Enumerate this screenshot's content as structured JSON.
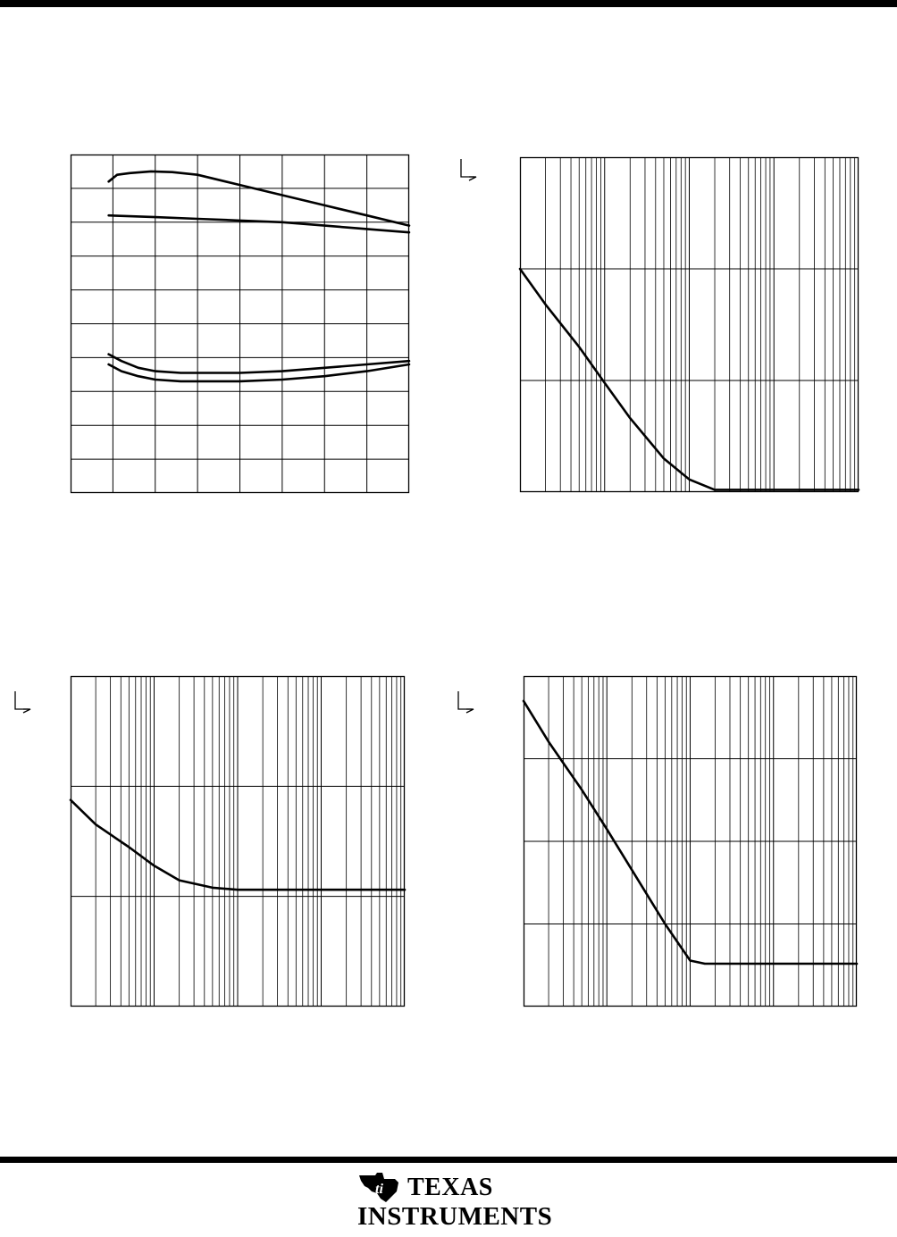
{
  "chart_data": [
    {
      "type": "line",
      "title": "",
      "xlabel": "",
      "ylabel": "",
      "xscale": "linear",
      "yscale": "linear",
      "grid": true,
      "x": [
        0,
        0.5,
        1,
        1.5,
        2,
        2.5,
        3,
        3.5,
        4
      ],
      "series": [
        {
          "x": [
            0.45,
            0.55,
            0.7,
            0.95,
            1.2,
            1.5,
            2.0,
            2.5,
            3.0,
            3.5,
            4.0
          ],
          "values": [
            9.2,
            9.4,
            9.45,
            9.5,
            9.48,
            9.4,
            9.1,
            8.8,
            8.5,
            8.2,
            7.9
          ]
        },
        {
          "x": [
            0.45,
            1.0,
            1.5,
            2.0,
            2.5,
            3.0,
            3.5,
            4.0
          ],
          "values": [
            8.2,
            8.15,
            8.1,
            8.05,
            8.0,
            7.9,
            7.8,
            7.7
          ]
        },
        {
          "x": [
            0.45,
            0.6,
            0.8,
            1.0,
            1.3,
            1.7,
            2.0,
            2.5,
            3.0,
            3.5,
            4.0
          ],
          "values": [
            4.1,
            3.9,
            3.7,
            3.6,
            3.55,
            3.55,
            3.55,
            3.6,
            3.7,
            3.8,
            3.9
          ]
        },
        {
          "x": [
            0.45,
            0.6,
            0.8,
            1.0,
            1.3,
            1.7,
            2.0,
            2.5,
            3.0,
            3.5,
            4.0
          ],
          "values": [
            3.8,
            3.6,
            3.45,
            3.35,
            3.3,
            3.3,
            3.3,
            3.35,
            3.45,
            3.6,
            3.8
          ]
        }
      ],
      "xlim": [
        0,
        4
      ],
      "ylim": [
        0,
        10
      ]
    },
    {
      "type": "line",
      "title": "",
      "xlabel": "",
      "ylabel": "",
      "xscale": "log",
      "yscale": "log",
      "grid": true,
      "xlim": [
        1,
        10000
      ],
      "ylim": [
        1,
        1000
      ],
      "series": [
        {
          "x": [
            1,
            2,
            5,
            10,
            20,
            50,
            100,
            200,
            300,
            1000,
            10000
          ],
          "values": [
            100,
            48,
            20,
            9.5,
            4.6,
            2.0,
            1.3,
            1.05,
            1.05,
            1.05,
            1.05
          ]
        }
      ]
    },
    {
      "type": "line",
      "title": "",
      "xlabel": "",
      "ylabel": "",
      "xscale": "log",
      "yscale": "log",
      "grid": true,
      "xlim": [
        1,
        10000
      ],
      "ylim": [
        1,
        1000
      ],
      "series": [
        {
          "x": [
            1,
            2,
            5,
            10,
            20,
            50,
            100,
            200,
            1000,
            10000
          ],
          "values": [
            75,
            45,
            28,
            19,
            14,
            12,
            11.5,
            11.5,
            11.5,
            11.5
          ]
        }
      ]
    },
    {
      "type": "line",
      "title": "",
      "xlabel": "",
      "ylabel": "",
      "xscale": "log",
      "yscale": "log",
      "grid": true,
      "xlim": [
        1,
        10000
      ],
      "ylim": [
        1,
        10000
      ],
      "series": [
        {
          "x": [
            1,
            2,
            5,
            10,
            20,
            50,
            100,
            150,
            200,
            1000,
            10000
          ],
          "values": [
            5000,
            1600,
            420,
            140,
            45,
            10,
            3.6,
            3.3,
            3.3,
            3.3,
            3.3
          ]
        }
      ]
    }
  ]
}
